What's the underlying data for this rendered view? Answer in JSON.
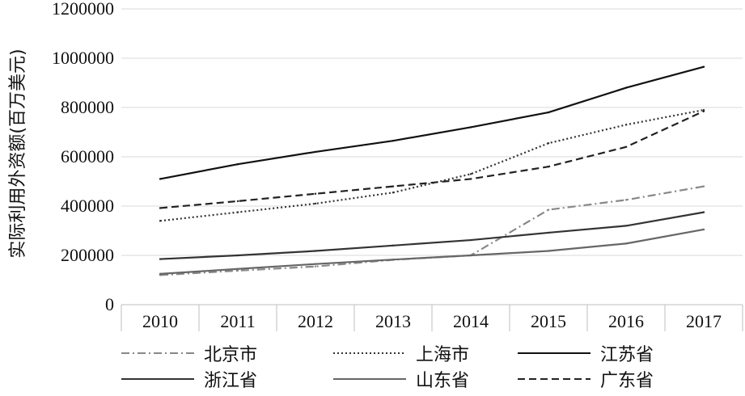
{
  "chart_data": {
    "type": "line",
    "title": "",
    "xlabel": "",
    "ylabel": "实际利用外资额(百万美元)",
    "x": [
      "2010",
      "2011",
      "2012",
      "2013",
      "2014",
      "2015",
      "2016",
      "2017"
    ],
    "ylim": [
      0,
      1200000
    ],
    "yticks": [
      0,
      200000,
      400000,
      600000,
      800000,
      1000000,
      1200000
    ],
    "ytick_labels": [
      "0",
      "200000",
      "400000",
      "600000",
      "800000",
      "1000000",
      "1200000"
    ],
    "grid": "horizontal",
    "legend_position": "bottom",
    "series": [
      {
        "name": "北京市",
        "style": "dashdot",
        "color": "#888888",
        "values": [
          120000,
          138000,
          155000,
          182000,
          200000,
          385000,
          425000,
          480000
        ]
      },
      {
        "name": "上海市",
        "style": "dotted",
        "color": "#333333",
        "values": [
          340000,
          375000,
          410000,
          455000,
          530000,
          655000,
          730000,
          790000
        ]
      },
      {
        "name": "江苏省",
        "style": "solid",
        "color": "#111111",
        "values": [
          510000,
          570000,
          620000,
          665000,
          720000,
          780000,
          880000,
          965000
        ]
      },
      {
        "name": "浙江省",
        "style": "solid",
        "color": "#333333",
        "values": [
          185000,
          200000,
          218000,
          240000,
          262000,
          292000,
          320000,
          375000
        ]
      },
      {
        "name": "山东省",
        "style": "solid",
        "color": "#666666",
        "values": [
          125000,
          145000,
          165000,
          183000,
          200000,
          218000,
          248000,
          305000
        ]
      },
      {
        "name": "广东省",
        "style": "dashed",
        "color": "#222222",
        "values": [
          392000,
          420000,
          450000,
          480000,
          510000,
          560000,
          640000,
          785000
        ]
      }
    ]
  }
}
